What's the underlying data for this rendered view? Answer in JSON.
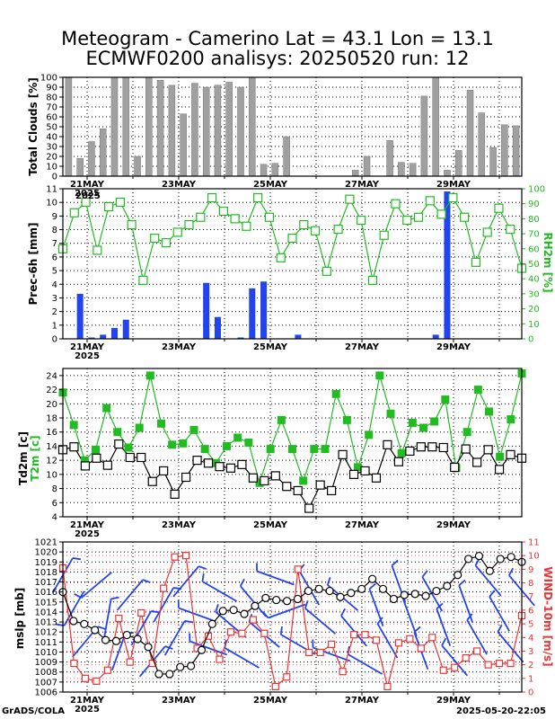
{
  "title_line1": "Meteogram - Camerino Lat = 43.1 Lon = 13.1",
  "title_line2": "ECMWF0200 analisys: 20250520 run: 12",
  "footer_left": "GrADS/COLA",
  "footer_right": "2025-05-20-22:05",
  "colors": {
    "bars_gray": "#a0a0a0",
    "bars_blue": "#2244ee",
    "green": "#22bb22",
    "red": "#ee3333",
    "blue": "#2244ee",
    "black": "#000000"
  },
  "chart_data": [
    {
      "type": "bar",
      "name": "clouds",
      "ylabel": "Total Clouds [%]",
      "ylim": [
        0,
        100
      ],
      "yticks": [
        0,
        10,
        20,
        30,
        40,
        50,
        60,
        70,
        80,
        90,
        100
      ],
      "x_date_labels": [
        "21MAY",
        "23MAY",
        "25MAY",
        "27MAY",
        "29MAY"
      ],
      "x_year_label": "2025",
      "values": [
        100,
        18,
        35,
        48,
        100,
        100,
        20,
        100,
        97,
        92,
        63,
        94,
        90,
        92,
        95,
        90,
        100,
        12,
        13,
        40,
        0,
        0,
        0,
        0,
        0,
        6,
        20,
        0,
        36,
        14,
        13,
        81,
        100,
        6,
        26,
        87,
        64,
        29,
        52,
        51
      ]
    },
    {
      "type": "bar+line",
      "name": "precip-rh",
      "ylabel": "Prec-6h [mm]",
      "y2label": "RH2m [%]",
      "ylim": [
        0,
        11
      ],
      "yticks": [
        0,
        1,
        2,
        3,
        4,
        5,
        6,
        7,
        8,
        9,
        10,
        11
      ],
      "y2lim": [
        0,
        100
      ],
      "y2ticks": [
        0,
        10,
        20,
        30,
        40,
        50,
        60,
        70,
        80,
        90,
        100
      ],
      "x_date_labels": [
        "21MAY",
        "23MAY",
        "25MAY",
        "27MAY",
        "29MAY"
      ],
      "x_year_label": "2025",
      "inner_year_label": "2025",
      "precip": [
        0,
        3.3,
        0.1,
        0.3,
        0.8,
        1.4,
        0,
        0,
        0,
        0,
        0,
        0,
        4.1,
        1.6,
        0,
        0.1,
        3.7,
        4.2,
        0,
        0,
        0.3,
        0,
        0,
        0,
        0,
        0,
        0,
        0,
        0,
        0,
        0,
        0,
        0.3,
        10.8,
        0,
        0,
        0,
        0,
        0,
        0
      ],
      "rh": [
        60,
        84,
        91,
        59,
        88,
        91,
        76,
        39,
        67,
        64,
        71,
        76,
        81,
        94,
        85,
        80,
        75,
        94,
        81,
        54,
        67,
        76,
        72,
        45,
        73,
        93,
        79,
        39,
        69,
        90,
        79,
        81,
        92,
        83,
        94,
        81,
        51,
        71,
        87,
        73,
        47
      ]
    },
    {
      "type": "line",
      "name": "temperature",
      "ylabel1": "Td2m [c]",
      "ylabel2": "T2m [c]",
      "ylim": [
        4,
        25
      ],
      "yticks": [
        4,
        6,
        8,
        10,
        12,
        14,
        16,
        18,
        20,
        22,
        24
      ],
      "x_date_labels": [
        "21MAY",
        "23MAY",
        "25MAY",
        "27MAY",
        "29MAY"
      ],
      "x_year_label": "2025",
      "t2m": [
        21.6,
        17,
        12,
        13.5,
        19.4,
        16,
        13.8,
        16.6,
        24,
        17.2,
        14.2,
        14.4,
        16.3,
        13.6,
        11.6,
        14,
        15.2,
        14.5,
        8.8,
        13.6,
        17.7,
        13.6,
        9.1,
        13.6,
        13.6,
        21.4,
        17.7,
        11,
        15.6,
        24,
        18.6,
        13,
        17.3,
        16.6,
        17.5,
        20.6,
        10.9,
        16,
        22,
        18.9,
        12.5,
        17.8,
        24.3
      ],
      "td2m": [
        13.5,
        13.9,
        11.2,
        12.3,
        11.3,
        14.3,
        12.4,
        12.4,
        9,
        10.5,
        7.2,
        9.6,
        12,
        11.6,
        11.1,
        10.9,
        11.4,
        9.5,
        9.1,
        9.8,
        8.3,
        7.7,
        5.2,
        8.5,
        7.7,
        12.8,
        10,
        10.5,
        9.5,
        14.2,
        11.8,
        13.3,
        13.9,
        13.9,
        13.8,
        11,
        13.6,
        11.7,
        13.5,
        10.7,
        12.8,
        12.3
      ]
    },
    {
      "type": "line",
      "name": "pressure-wind",
      "ylabel": "mslp [mb]",
      "y2label": "WIND-10m [m/s]",
      "ylim": [
        1006,
        1021
      ],
      "yticks": [
        1006,
        1007,
        1008,
        1009,
        1010,
        1011,
        1012,
        1013,
        1014,
        1015,
        1016,
        1017,
        1018,
        1019,
        1020,
        1021
      ],
      "y2lim": [
        0,
        11
      ],
      "y2ticks": [
        0,
        1,
        2,
        3,
        4,
        5,
        6,
        7,
        8,
        9,
        10,
        11
      ],
      "x_date_labels": [
        "21MAY",
        "23MAY",
        "25MAY",
        "27MAY",
        "29MAY"
      ],
      "x_year_label": "2025",
      "mslp": [
        1016,
        1013.1,
        1012.8,
        1012.2,
        1011.2,
        1011.1,
        1011.7,
        1011.3,
        1010.5,
        1007.8,
        1007.8,
        1008.5,
        1008.6,
        1010.2,
        1012.8,
        1014.1,
        1014.2,
        1013.8,
        1014.6,
        1015.4,
        1015.2,
        1015.1,
        1015.3,
        1016.1,
        1016.3,
        1016.1,
        1015.5,
        1015.9,
        1016.3,
        1017.3,
        1016.3,
        1015.3,
        1015.7,
        1015.8,
        1015.6,
        1016.1,
        1016.6,
        1017.7,
        1019.3,
        1019.6,
        1018.1,
        1019.3,
        1019.5,
        1019.0
      ],
      "wind": [
        9.1,
        2.1,
        1.0,
        0.8,
        1.6,
        5.4,
        2.2,
        5.8,
        2.1,
        7.6,
        9.9,
        10.0,
        3.2,
        4.1,
        2.4,
        4.4,
        4.3,
        5.3,
        4.3,
        0.4,
        1.1,
        9.0,
        2.9,
        2.9,
        3.5,
        1.5,
        4.2,
        4.2,
        3.8,
        0.4,
        3.6,
        3.9,
        3.2,
        4.0,
        1.6,
        1.8,
        2.5,
        3.0,
        2.0,
        2.1,
        2.1,
        5.6
      ],
      "barbs_dir": [
        300,
        120,
        310,
        140,
        280,
        290,
        310,
        300,
        310,
        300,
        300,
        310,
        200,
        200,
        210,
        220,
        210,
        230,
        220,
        200,
        160,
        210,
        240,
        220,
        200,
        220,
        230,
        210,
        250,
        240,
        250,
        250,
        250,
        240,
        250,
        230,
        250,
        240,
        230,
        240,
        230,
        230
      ]
    }
  ]
}
